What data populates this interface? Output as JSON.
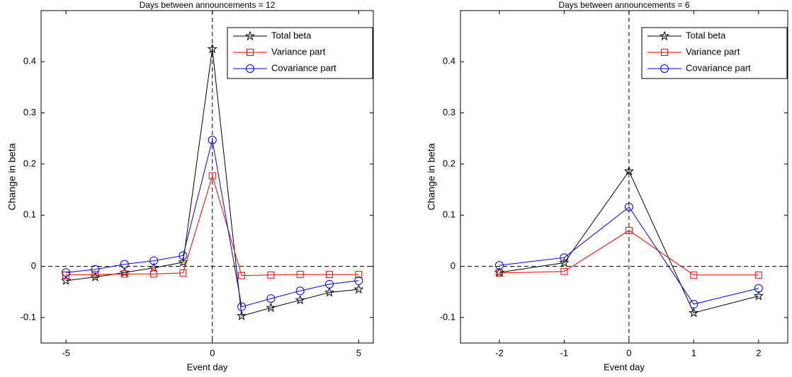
{
  "chart_data": [
    {
      "type": "line",
      "title": "Days between announcements = 12",
      "xlabel": "Event day",
      "ylabel": "Change in beta",
      "x": [
        -5,
        -4,
        -3,
        -2,
        -1,
        0,
        1,
        2,
        3,
        4,
        5
      ],
      "series": [
        {
          "name": "Total beta",
          "color": "#000000",
          "marker": "star",
          "values": [
            -0.028,
            -0.021,
            -0.012,
            -0.003,
            0.008,
            0.425,
            -0.097,
            -0.081,
            -0.066,
            -0.051,
            -0.045
          ]
        },
        {
          "name": "Variance part",
          "color": "#ff0000",
          "marker": "square",
          "values": [
            -0.017,
            -0.016,
            -0.015,
            -0.015,
            -0.013,
            0.177,
            -0.018,
            -0.017,
            -0.016,
            -0.016,
            -0.016
          ]
        },
        {
          "name": "Covariance part",
          "color": "#0000ff",
          "marker": "circle",
          "values": [
            -0.012,
            -0.006,
            0.004,
            0.011,
            0.021,
            0.247,
            -0.079,
            -0.063,
            -0.048,
            -0.035,
            -0.028
          ]
        }
      ],
      "xlim": [
        -5.85,
        5.5
      ],
      "ylim": [
        -0.15,
        0.5
      ],
      "xticks": [
        -5,
        0,
        5
      ],
      "yticks": [
        -0.1,
        0,
        0.1,
        0.2,
        0.3,
        0.4
      ],
      "hline": 0,
      "vline": 0,
      "legend": "upper right"
    },
    {
      "type": "line",
      "title": "Days between announcements = 6",
      "xlabel": "Event day",
      "ylabel": "Change in beta",
      "x": [
        -2,
        -1,
        0,
        1,
        2
      ],
      "series": [
        {
          "name": "Total beta",
          "color": "#000000",
          "marker": "star",
          "values": [
            -0.012,
            0.007,
            0.186,
            -0.091,
            -0.058
          ]
        },
        {
          "name": "Variance part",
          "color": "#ff0000",
          "marker": "square",
          "values": [
            -0.013,
            -0.01,
            0.07,
            -0.017,
            -0.017
          ]
        },
        {
          "name": "Covariance part",
          "color": "#0000ff",
          "marker": "circle",
          "values": [
            0.002,
            0.017,
            0.116,
            -0.074,
            -0.043
          ]
        }
      ],
      "xlim": [
        -2.6,
        2.45
      ],
      "ylim": [
        -0.15,
        0.5
      ],
      "xticks": [
        -2,
        -1,
        0,
        1,
        2
      ],
      "yticks": [
        -0.1,
        0,
        0.1,
        0.2,
        0.3,
        0.4
      ],
      "hline": 0,
      "vline": 0,
      "legend": "upper right"
    }
  ]
}
